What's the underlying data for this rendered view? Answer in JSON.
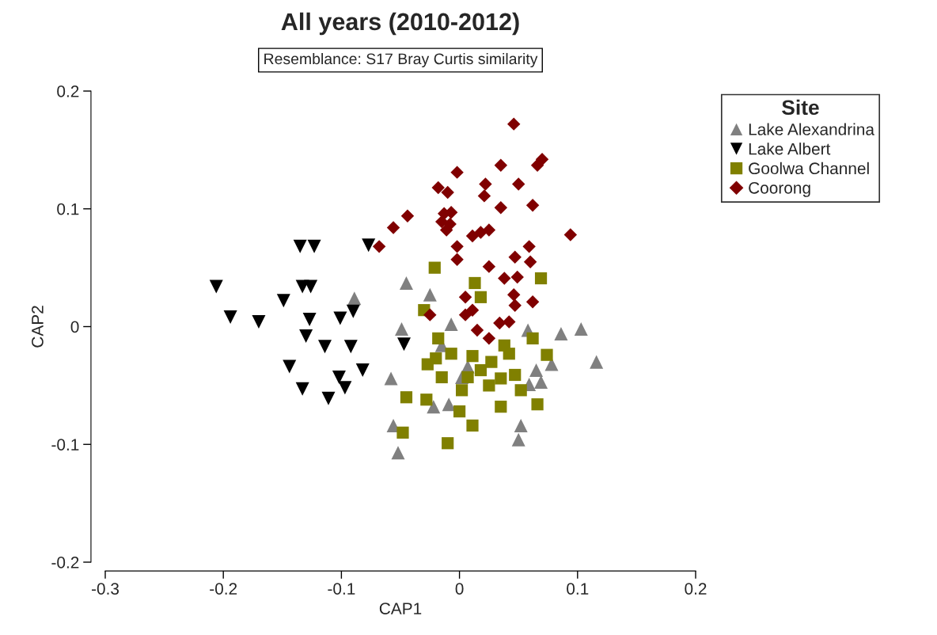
{
  "chart_data": {
    "type": "scatter",
    "title": "All years (2010-2012)",
    "subtitle": "Resemblance: S17 Bray Curtis similarity",
    "xlabel": "CAP1",
    "ylabel": "CAP2",
    "legend_title": "Site",
    "legend": "top right",
    "grid": false,
    "xlim": [
      -0.3,
      0.2
    ],
    "ylim": [
      -0.2,
      0.2
    ],
    "xticks": [
      -0.3,
      -0.2,
      -0.1,
      0,
      0.1,
      0.2
    ],
    "yticks": [
      -0.2,
      -0.1,
      0,
      0.1,
      0.2
    ],
    "series": [
      {
        "name": "Lake Alexandrina",
        "color": "#808080",
        "marker": "triangle",
        "x": [
          -0.045,
          -0.025,
          -0.049,
          -0.007,
          -0.058,
          -0.056,
          -0.052,
          0.052,
          0.05,
          0.086,
          0.103,
          0.116,
          0.058,
          0.065,
          0.069,
          0.078,
          0.059,
          0.002,
          0.007,
          -0.015,
          -0.022,
          -0.009,
          -0.089
        ],
        "values": [
          0.037,
          0.027,
          -0.002,
          0.002,
          -0.044,
          -0.084,
          -0.107,
          -0.084,
          -0.096,
          -0.006,
          -0.002,
          -0.03,
          -0.003,
          -0.037,
          -0.047,
          -0.032,
          -0.049,
          -0.043,
          -0.034,
          -0.016,
          -0.068,
          -0.066,
          0.024
        ]
      },
      {
        "name": "Lake Albert",
        "color": "#000000",
        "marker": "triangle-down",
        "x": [
          -0.135,
          -0.123,
          -0.206,
          -0.133,
          -0.126,
          -0.149,
          -0.194,
          -0.17,
          -0.127,
          -0.101,
          -0.09,
          -0.13,
          -0.114,
          -0.092,
          -0.082,
          -0.144,
          -0.102,
          -0.097,
          -0.133,
          -0.111,
          -0.077,
          -0.047
        ],
        "values": [
          0.068,
          0.068,
          0.034,
          0.034,
          0.034,
          0.022,
          0.008,
          0.004,
          0.006,
          0.007,
          0.013,
          -0.008,
          -0.017,
          -0.017,
          -0.037,
          -0.034,
          -0.043,
          -0.052,
          -0.053,
          -0.061,
          0.069,
          -0.015
        ]
      },
      {
        "name": "Goolwa Channel",
        "color": "#808000",
        "marker": "square",
        "x": [
          -0.021,
          0.069,
          0.013,
          0.018,
          -0.03,
          -0.018,
          0.062,
          0.074,
          -0.027,
          -0.045,
          -0.028,
          -0.048,
          -0.01,
          0.011,
          0.066,
          0.035,
          0.0,
          0.038,
          0.047,
          0.018,
          0.002,
          -0.015,
          0.052,
          0.025,
          0.042,
          0.007,
          0.027,
          0.011,
          -0.007,
          -0.02,
          0.035
        ],
        "values": [
          0.05,
          0.041,
          0.037,
          0.025,
          0.014,
          -0.01,
          -0.01,
          -0.024,
          -0.032,
          -0.06,
          -0.062,
          -0.09,
          -0.099,
          -0.084,
          -0.066,
          -0.068,
          -0.072,
          -0.016,
          -0.041,
          -0.037,
          -0.054,
          -0.043,
          -0.054,
          -0.05,
          -0.023,
          -0.043,
          -0.03,
          -0.025,
          -0.023,
          -0.027,
          -0.044
        ]
      },
      {
        "name": "Coorong",
        "color": "#800000",
        "marker": "diamond",
        "x": [
          0.046,
          0.035,
          0.066,
          0.07,
          -0.002,
          0.022,
          0.05,
          -0.018,
          -0.01,
          0.021,
          0.035,
          0.062,
          -0.044,
          -0.056,
          -0.013,
          -0.007,
          -0.015,
          -0.008,
          -0.011,
          0.011,
          0.018,
          0.025,
          0.094,
          -0.068,
          -0.002,
          0.059,
          -0.002,
          0.047,
          0.06,
          0.025,
          0.038,
          0.049,
          0.005,
          0.046,
          0.062,
          -0.025,
          0.011,
          0.005,
          0.042,
          0.034,
          0.015,
          0.025,
          0.047
        ],
        "values": [
          0.172,
          0.137,
          0.137,
          0.142,
          0.131,
          0.121,
          0.121,
          0.118,
          0.114,
          0.111,
          0.101,
          0.103,
          0.094,
          0.084,
          0.096,
          0.097,
          0.089,
          0.087,
          0.082,
          0.077,
          0.08,
          0.082,
          0.078,
          0.068,
          0.068,
          0.068,
          0.057,
          0.059,
          0.055,
          0.051,
          0.041,
          0.042,
          0.025,
          0.027,
          0.021,
          0.01,
          0.014,
          0.01,
          0.004,
          0.003,
          -0.003,
          -0.01,
          0.018
        ]
      }
    ]
  }
}
